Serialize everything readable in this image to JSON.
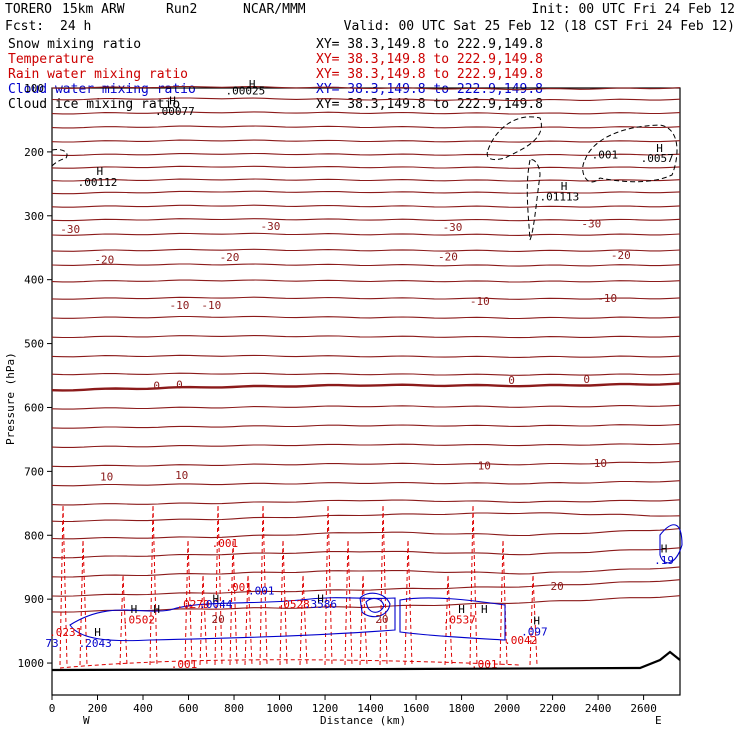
{
  "header": {
    "model": "TORERO",
    "resolution": "15km ARW",
    "run": "Run2",
    "org": "NCAR/MMM",
    "init": "Init: 00 UTC Fri 24 Feb 12",
    "fcst_label": "Fcst:",
    "fcst_value": "24 h",
    "valid": "Valid: 00 UTC Sat 25 Feb 12 (18 CST Fri 24 Feb 12)"
  },
  "legend": [
    {
      "name": "Snow mixing ratio",
      "xy": "XY=  38.3,149.8 to 222.9,149.8",
      "color": "#000000"
    },
    {
      "name": "Temperature",
      "xy": "XY=  38.3,149.8 to 222.9,149.8",
      "color": "#cc0000"
    },
    {
      "name": "Rain water mixing ratio",
      "xy": "XY=  38.3,149.8 to 222.9,149.8",
      "color": "#cc0000"
    },
    {
      "name": "Cloud water mixing ratio",
      "xy": "XY=  38.3,149.8 to 222.9,149.8",
      "color": "#0000cc"
    },
    {
      "name": "Cloud ice mixing ratio",
      "xy": "XY=  38.3,149.8 to 222.9,149.8",
      "color": "#000000"
    }
  ],
  "chart_data": {
    "type": "line",
    "xlabel": "Distance (km)",
    "ylabel": "Pressure (hPa)",
    "xlim": [
      0,
      2760
    ],
    "ylim": [
      1050,
      100
    ],
    "x_ticks": [
      0,
      200,
      400,
      600,
      800,
      1000,
      1200,
      1400,
      1600,
      1800,
      2000,
      2200,
      2400,
      2600
    ],
    "y_ticks": [
      200,
      300,
      400,
      500,
      600,
      700,
      800,
      900,
      1000
    ],
    "y_tick_extra": "100",
    "west_label": "W",
    "east_label": "E",
    "colors": {
      "isotherm": "#8b1a1a",
      "rain": "#dd0000",
      "cloud_water": "#0000cc",
      "ice": "#000000",
      "terrain": "#000000"
    },
    "isotherms": [
      {
        "p": [
          100,
          98,
          100,
          102,
          100
        ]
      },
      {
        "p": [
          118,
          116,
          118,
          119,
          118
        ]
      },
      {
        "p": [
          140,
          138,
          139,
          140,
          139
        ]
      },
      {
        "p": [
          162,
          160,
          161,
          162,
          161
        ]
      },
      {
        "p": [
          184,
          182,
          183,
          184,
          183
        ]
      },
      {
        "p": [
          205,
          203,
          204,
          205,
          204
        ]
      },
      {
        "p": [
          225,
          223,
          224,
          225,
          224
        ]
      },
      {
        "p": [
          245,
          243,
          244,
          245,
          244
        ]
      },
      {
        "p": [
          265,
          262,
          263,
          264,
          263
        ]
      },
      {
        "p": [
          286,
          284,
          285,
          286,
          285
        ]
      },
      {
        "p": [
          307,
          305,
          306,
          307,
          306
        ]
      },
      {
        "p": [
          330,
          328,
          329,
          330,
          329
        ]
      },
      {
        "p": [
          355,
          353,
          354,
          355,
          354
        ]
      },
      {
        "p": [
          377,
          376,
          377,
          378,
          377
        ]
      },
      {
        "p": [
          403,
          401,
          402,
          403,
          402
        ]
      },
      {
        "p": [
          430,
          428,
          429,
          430,
          429
        ]
      },
      {
        "p": [
          460,
          458,
          459,
          460,
          459
        ]
      },
      {
        "p": [
          490,
          488,
          489,
          490,
          489
        ]
      },
      {
        "p": [
          520,
          519,
          520,
          521,
          520
        ]
      },
      {
        "p": [
          548,
          547,
          548,
          549,
          548
        ]
      },
      {
        "p": [
          573,
          568,
          565,
          566,
          563
        ],
        "bold": true
      },
      {
        "p": [
          602,
          600,
          598,
          599,
          597
        ]
      },
      {
        "p": [
          632,
          630,
          628,
          629,
          627
        ]
      },
      {
        "p": [
          662,
          660,
          658,
          659,
          657
        ]
      },
      {
        "p": [
          692,
          690,
          688,
          689,
          685
        ]
      },
      {
        "p": [
          722,
          720,
          718,
          719,
          715
        ]
      },
      {
        "p": [
          752,
          750,
          745,
          748,
          745
        ]
      },
      {
        "p": [
          778,
          775,
          768,
          765,
          770
        ]
      },
      {
        "p": [
          805,
          803,
          795,
          800,
          790
        ]
      },
      {
        "p": [
          835,
          830,
          825,
          830,
          820
        ]
      },
      {
        "p": [
          865,
          860,
          855,
          860,
          850
        ]
      },
      {
        "p": [
          895,
          890,
          885,
          880,
          870
        ]
      },
      {
        "p": [
          920,
          915,
          912,
          905,
          895
        ]
      }
    ],
    "isotherm_x": [
      0,
      700,
      1400,
      2100,
      2760
    ],
    "isotherm_labels": [
      {
        "text": "-30",
        "x": 80,
        "p": 327
      },
      {
        "text": "-30",
        "x": 960,
        "p": 322
      },
      {
        "text": "-30",
        "x": 1760,
        "p": 324
      },
      {
        "text": "-30",
        "x": 2370,
        "p": 318
      },
      {
        "text": "-20",
        "x": 230,
        "p": 375
      },
      {
        "text": "-20",
        "x": 780,
        "p": 371
      },
      {
        "text": "-20",
        "x": 1740,
        "p": 370
      },
      {
        "text": "-20",
        "x": 2500,
        "p": 368
      },
      {
        "text": "-10",
        "x": 560,
        "p": 446
      },
      {
        "text": "-10",
        "x": 700,
        "p": 446
      },
      {
        "text": "-10",
        "x": 1880,
        "p": 440
      },
      {
        "text": "-10",
        "x": 2440,
        "p": 435
      },
      {
        "text": "0",
        "x": 460,
        "p": 572
      },
      {
        "text": "0",
        "x": 560,
        "p": 570
      },
      {
        "text": "0",
        "x": 2020,
        "p": 563
      },
      {
        "text": "0",
        "x": 2350,
        "p": 562
      },
      {
        "text": "10",
        "x": 240,
        "p": 714
      },
      {
        "text": "10",
        "x": 570,
        "p": 712
      },
      {
        "text": "10",
        "x": 1900,
        "p": 697
      },
      {
        "text": "10",
        "x": 2410,
        "p": 693
      },
      {
        "text": "20",
        "x": 730,
        "p": 937
      },
      {
        "text": "20",
        "x": 1450,
        "p": 937
      },
      {
        "text": "20",
        "x": 2220,
        "p": 886
      }
    ],
    "ice_labels": [
      {
        "text": ".00025",
        "x": 850,
        "p": 110
      },
      {
        "text": ".00077",
        "x": 540,
        "p": 142
      },
      {
        "text": ".00112",
        "x": 200,
        "p": 253
      },
      {
        "text": ".01113",
        "x": 2230,
        "p": 276
      },
      {
        "text": ".001",
        "x": 2430,
        "p": 210
      },
      {
        "text": ".0057",
        "x": 2660,
        "p": 216
      }
    ],
    "high_markers": [
      {
        "x": 880,
        "p": 100
      },
      {
        "x": 530,
        "p": 126
      },
      {
        "x": 210,
        "p": 236
      },
      {
        "x": 2250,
        "p": 260
      },
      {
        "x": 2670,
        "p": 200
      },
      {
        "x": 2690,
        "p": 827
      },
      {
        "x": 360,
        "p": 922
      },
      {
        "x": 460,
        "p": 922
      },
      {
        "x": 720,
        "p": 905
      },
      {
        "x": 1180,
        "p": 905
      },
      {
        "x": 1800,
        "p": 922
      },
      {
        "x": 1900,
        "p": 922
      },
      {
        "x": 2130,
        "p": 940
      },
      {
        "x": 200,
        "p": 958
      }
    ],
    "rain_labels": [
      {
        "text": ".001",
        "x": 760,
        "p": 818
      },
      {
        "text": ".001",
        "x": 820,
        "p": 887
      },
      {
        "text": ".0279",
        "x": 620,
        "p": 914
      },
      {
        "text": ".0502",
        "x": 380,
        "p": 938
      },
      {
        "text": ".0231",
        "x": 60,
        "p": 958
      },
      {
        "text": ".0528",
        "x": 1060,
        "p": 914
      },
      {
        "text": ".0537",
        "x": 1790,
        "p": 938
      },
      {
        "text": ".0042",
        "x": 2060,
        "p": 970
      },
      {
        "text": ".001",
        "x": 580,
        "p": 1008
      },
      {
        "text": ".001",
        "x": 1900,
        "p": 1008
      }
    ],
    "cloud_labels": [
      {
        "text": ".0044",
        "x": 720,
        "p": 914
      },
      {
        "text": ".001",
        "x": 920,
        "p": 893
      },
      {
        "text": ".2043",
        "x": 190,
        "p": 975
      },
      {
        "text": "73",
        "x": 0,
        "p": 975
      },
      {
        "text": ".097",
        "x": 2120,
        "p": 957
      },
      {
        "text": ".19",
        "x": 2690,
        "p": 845
      },
      {
        "text": ".3586",
        "x": 1180,
        "p": 914
      }
    ]
  }
}
